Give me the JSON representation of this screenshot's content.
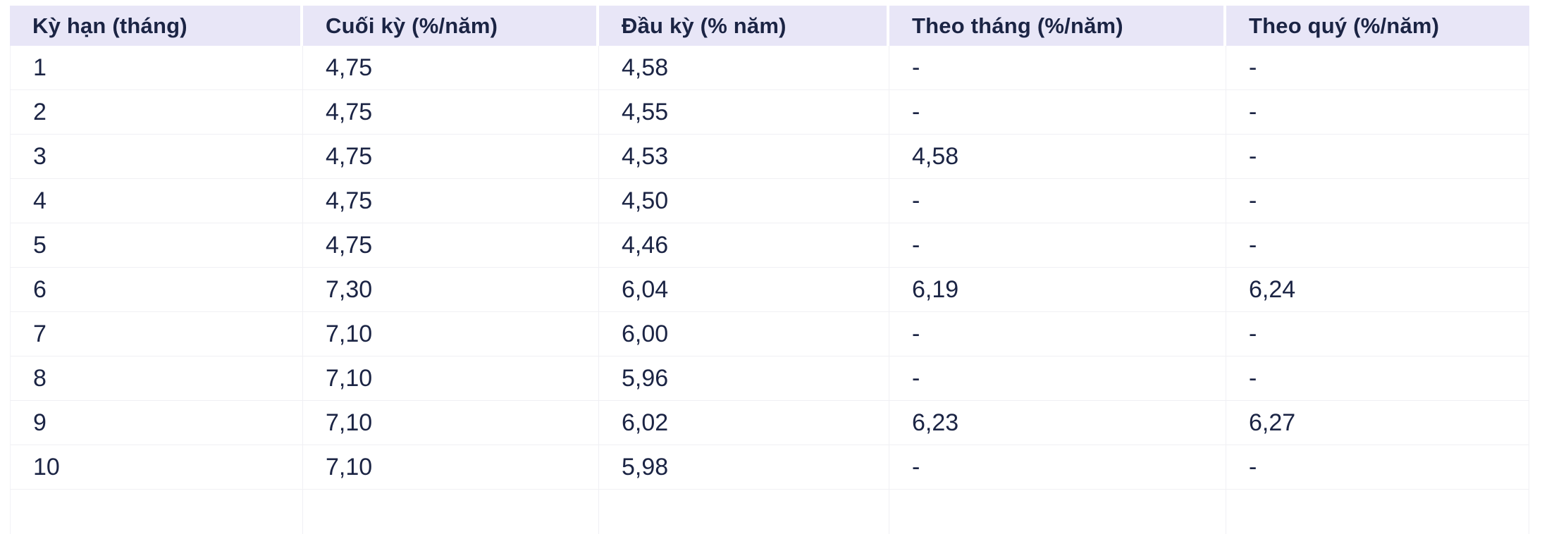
{
  "page": {
    "background": "#ffffff"
  },
  "table": {
    "headers": [
      "Kỳ hạn (tháng)",
      "Cuối kỳ (%/năm)",
      "Đầu kỳ (% năm)",
      "Theo tháng (%/năm)",
      "Theo quý (%/năm)"
    ],
    "rows": [
      [
        "1",
        "4,75",
        "4,58",
        "-",
        "-"
      ],
      [
        "2",
        "4,75",
        "4,55",
        "-",
        "-"
      ],
      [
        "3",
        "4,75",
        "4,53",
        "4,58",
        "-"
      ],
      [
        "4",
        "4,75",
        "4,50",
        "-",
        "-"
      ],
      [
        "5",
        "4,75",
        "4,46",
        "-",
        "-"
      ],
      [
        "6",
        "7,30",
        "6,04",
        "6,19",
        "6,24"
      ],
      [
        "7",
        "7,10",
        "6,00",
        "-",
        "-"
      ],
      [
        "8",
        "7,10",
        "5,96",
        "-",
        "-"
      ],
      [
        "9",
        "7,10",
        "6,02",
        "6,23",
        "6,27"
      ],
      [
        "10",
        "7,10",
        "5,98",
        "-",
        "-"
      ]
    ],
    "colors": {
      "header_background": "#e8e6f7",
      "text": "#1b2444",
      "grid_line": "#f0f0f4"
    }
  },
  "chart_data": {
    "type": "table",
    "title": "",
    "columns": [
      "Kỳ hạn (tháng)",
      "Cuối kỳ (%/năm)",
      "Đầu kỳ (% năm)",
      "Theo tháng (%/năm)",
      "Theo quý (%/năm)"
    ],
    "rows": [
      [
        "1",
        "4,75",
        "4,58",
        "-",
        "-"
      ],
      [
        "2",
        "4,75",
        "4,55",
        "-",
        "-"
      ],
      [
        "3",
        "4,75",
        "4,53",
        "4,58",
        "-"
      ],
      [
        "4",
        "4,75",
        "4,50",
        "-",
        "-"
      ],
      [
        "5",
        "4,75",
        "4,46",
        "-",
        "-"
      ],
      [
        "6",
        "7,30",
        "6,04",
        "6,19",
        "6,24"
      ],
      [
        "7",
        "7,10",
        "6,00",
        "-",
        "-"
      ],
      [
        "8",
        "7,10",
        "5,96",
        "-",
        "-"
      ],
      [
        "9",
        "7,10",
        "6,02",
        "6,23",
        "6,27"
      ],
      [
        "10",
        "7,10",
        "5,98",
        "-",
        "-"
      ]
    ],
    "layout_hints": {
      "header_background": "#e8e6f7",
      "text_color": "#1b2444",
      "grid": "light horizontal and vertical separators",
      "last_row_truncated_at_bottom": true
    }
  }
}
